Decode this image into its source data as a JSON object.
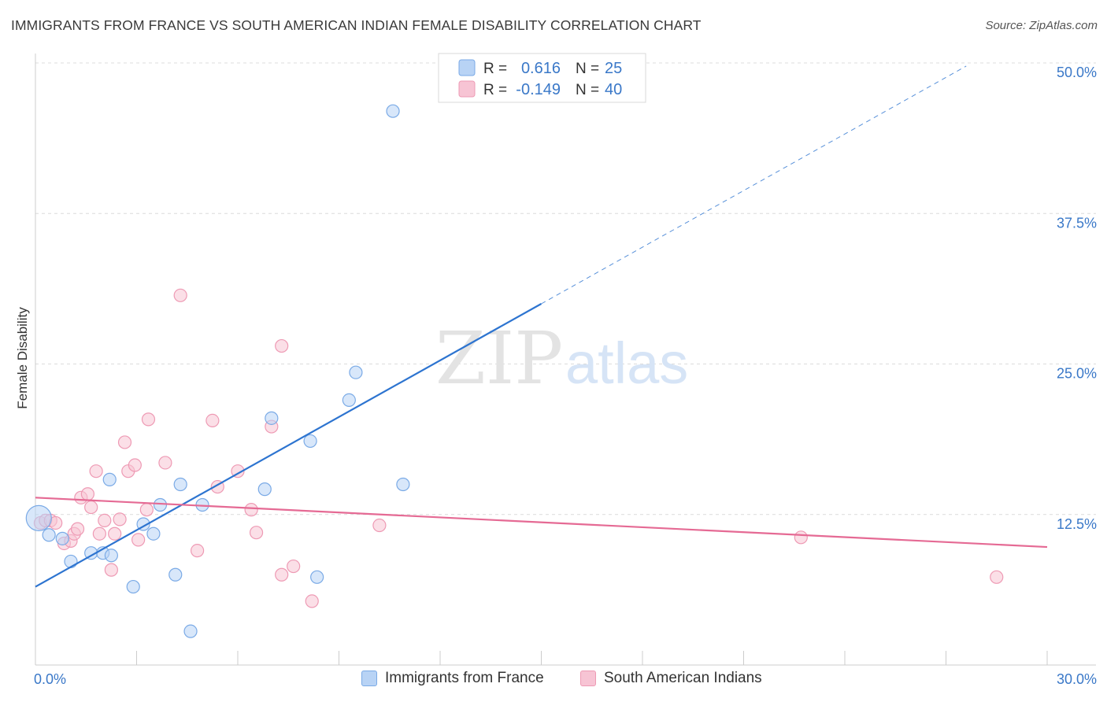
{
  "title": "IMMIGRANTS FROM FRANCE VS SOUTH AMERICAN INDIAN FEMALE DISABILITY CORRELATION CHART",
  "source": "Source: ZipAtlas.com",
  "colors": {
    "blue_fill": "#b8d3f5",
    "blue_stroke": "#7aaae6",
    "blue_line": "#2d74d0",
    "pink_fill": "#f7c4d4",
    "pink_stroke": "#ee9ab4",
    "pink_line": "#e56a94",
    "axis_label": "#3a78c8",
    "grid": "#dcdcdc"
  },
  "legend": {
    "r_label": "R =",
    "n_label": "N =",
    "blue": {
      "r": "0.616",
      "n": "25"
    },
    "pink": {
      "r": "-0.149",
      "n": "40"
    }
  },
  "watermark": {
    "zip": "ZIP",
    "atlas": "atlas"
  },
  "chart_data": {
    "type": "scatter",
    "title": "IMMIGRANTS FROM FRANCE VS SOUTH AMERICAN INDIAN FEMALE DISABILITY CORRELATION CHART",
    "xlabel": "",
    "ylabel": "Female Disability",
    "xlim": [
      0,
      30
    ],
    "ylim": [
      0,
      50
    ],
    "x_tick_labels": [
      {
        "value": 0,
        "label": "0.0%"
      },
      {
        "value": 30,
        "label": "30.0%"
      }
    ],
    "y_tick_labels": [
      {
        "value": 12.5,
        "label": "12.5%"
      },
      {
        "value": 25,
        "label": "25.0%"
      },
      {
        "value": 37.5,
        "label": "37.5%"
      },
      {
        "value": 50,
        "label": "50.0%"
      }
    ],
    "series": [
      {
        "name": "Immigrants from France",
        "color": "blue",
        "trend": {
          "x0": 0,
          "y0": 6.5,
          "x1": 15,
          "y1": 30.0,
          "dash_to_x": 27.6
        },
        "points": [
          {
            "x": 0.1,
            "y": 12.2,
            "big": true
          },
          {
            "x": 0.4,
            "y": 10.8
          },
          {
            "x": 0.8,
            "y": 10.5
          },
          {
            "x": 1.05,
            "y": 8.6
          },
          {
            "x": 1.65,
            "y": 9.3
          },
          {
            "x": 2.0,
            "y": 9.3
          },
          {
            "x": 2.25,
            "y": 9.1
          },
          {
            "x": 2.2,
            "y": 15.4
          },
          {
            "x": 2.9,
            "y": 6.5
          },
          {
            "x": 3.2,
            "y": 11.7
          },
          {
            "x": 3.5,
            "y": 10.9
          },
          {
            "x": 3.7,
            "y": 13.3
          },
          {
            "x": 4.15,
            "y": 7.5
          },
          {
            "x": 4.3,
            "y": 15.0
          },
          {
            "x": 4.6,
            "y": 2.8
          },
          {
            "x": 4.95,
            "y": 13.3
          },
          {
            "x": 6.8,
            "y": 14.6
          },
          {
            "x": 7.0,
            "y": 20.5
          },
          {
            "x": 8.15,
            "y": 18.6
          },
          {
            "x": 8.35,
            "y": 7.3
          },
          {
            "x": 9.3,
            "y": 22.0
          },
          {
            "x": 9.5,
            "y": 24.3
          },
          {
            "x": 10.6,
            "y": 46.0
          },
          {
            "x": 10.9,
            "y": 15.0
          }
        ]
      },
      {
        "name": "South American Indians",
        "color": "pink",
        "trend": {
          "x0": 0,
          "y0": 13.9,
          "x1": 30,
          "y1": 9.8
        },
        "points": [
          {
            "x": 0.15,
            "y": 11.8
          },
          {
            "x": 0.3,
            "y": 12.0
          },
          {
            "x": 0.45,
            "y": 12.0
          },
          {
            "x": 0.6,
            "y": 11.8
          },
          {
            "x": 0.85,
            "y": 10.1
          },
          {
            "x": 1.05,
            "y": 10.3
          },
          {
            "x": 1.15,
            "y": 10.9
          },
          {
            "x": 1.25,
            "y": 11.3
          },
          {
            "x": 1.35,
            "y": 13.9
          },
          {
            "x": 1.55,
            "y": 14.2
          },
          {
            "x": 1.65,
            "y": 13.1
          },
          {
            "x": 1.8,
            "y": 16.1
          },
          {
            "x": 1.9,
            "y": 10.9
          },
          {
            "x": 2.05,
            "y": 12.0
          },
          {
            "x": 2.25,
            "y": 7.9
          },
          {
            "x": 2.35,
            "y": 10.9
          },
          {
            "x": 2.5,
            "y": 12.1
          },
          {
            "x": 2.65,
            "y": 18.5
          },
          {
            "x": 2.75,
            "y": 16.1
          },
          {
            "x": 2.95,
            "y": 16.6
          },
          {
            "x": 3.05,
            "y": 10.4
          },
          {
            "x": 3.3,
            "y": 12.9
          },
          {
            "x": 3.35,
            "y": 20.4
          },
          {
            "x": 3.85,
            "y": 16.8
          },
          {
            "x": 4.3,
            "y": 30.7
          },
          {
            "x": 4.8,
            "y": 9.5
          },
          {
            "x": 5.25,
            "y": 20.3
          },
          {
            "x": 5.4,
            "y": 14.8
          },
          {
            "x": 6.0,
            "y": 16.1
          },
          {
            "x": 6.4,
            "y": 12.9
          },
          {
            "x": 6.55,
            "y": 11.0
          },
          {
            "x": 7.0,
            "y": 19.8
          },
          {
            "x": 7.3,
            "y": 7.5
          },
          {
            "x": 7.3,
            "y": 26.5
          },
          {
            "x": 7.65,
            "y": 8.2
          },
          {
            "x": 8.2,
            "y": 5.3
          },
          {
            "x": 10.2,
            "y": 11.6
          },
          {
            "x": 22.7,
            "y": 10.6
          },
          {
            "x": 28.5,
            "y": 7.3
          }
        ]
      }
    ]
  }
}
